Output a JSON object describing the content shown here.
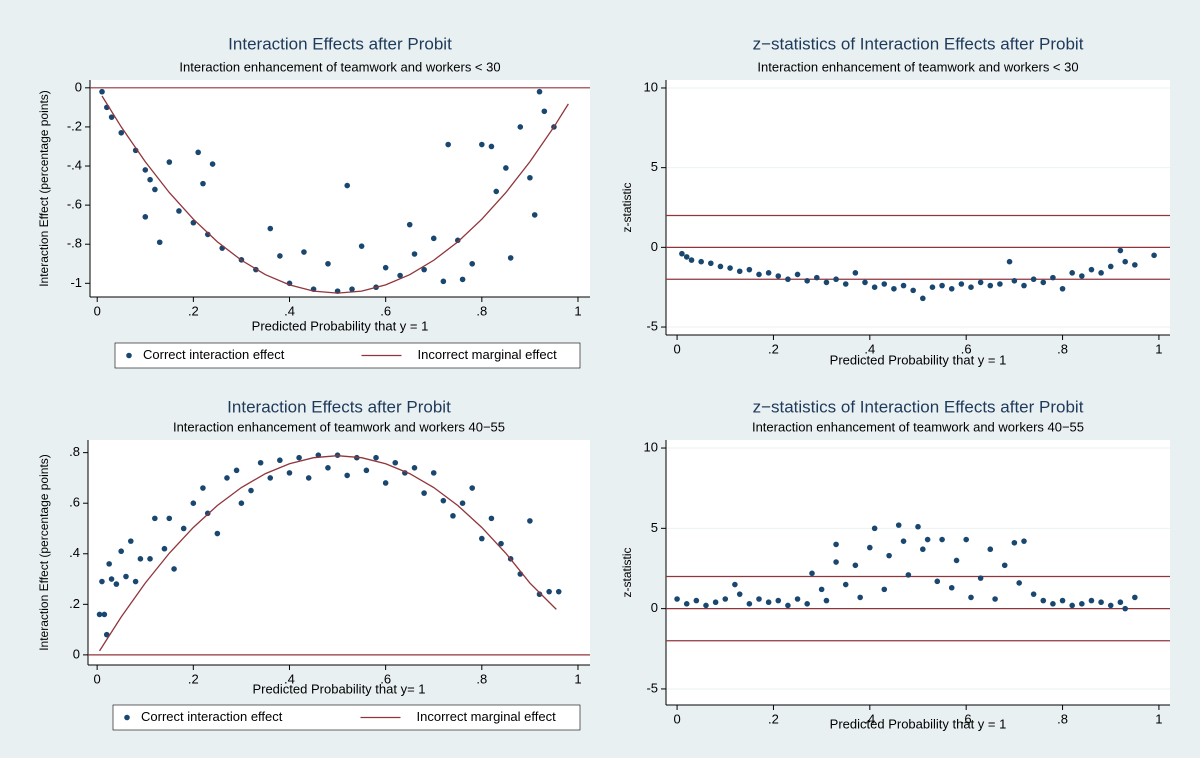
{
  "chart_data": [
    {
      "type": "scatter",
      "title": "Interaction Effects after Probit",
      "subtitle": "Interaction enhancement of teamwork and workers < 30",
      "xlabel": "Predicted Probability that y = 1",
      "ylabel": "Interaction Effect (percentage points)",
      "xlim": [
        -0.015,
        1.025
      ],
      "ylim": [
        -1.07,
        0.04
      ],
      "xticks": [
        0,
        {
          "value": 0.2,
          "label": ".2"
        },
        {
          "value": 0.4,
          "label": ".4"
        },
        {
          "value": 0.6,
          "label": ".6"
        },
        {
          "value": 0.8,
          "label": ".8"
        },
        1
      ],
      "yticks": [
        0,
        {
          "value": -0.2,
          "label": "-.2"
        },
        {
          "value": -0.4,
          "label": "-.4"
        },
        {
          "value": -0.6,
          "label": "-.6"
        },
        {
          "value": -0.8,
          "label": "-.8"
        },
        -1
      ],
      "grid": false,
      "legend": "bottom",
      "hlines": [
        0
      ],
      "hline_color": "#90353b",
      "series": [
        {
          "name": "Correct interaction effect",
          "kind": "points",
          "color": "#1a476f",
          "x": [
            0.01,
            0.02,
            0.03,
            0.05,
            0.08,
            0.1,
            0.11,
            0.12,
            0.1,
            0.13,
            0.15,
            0.17,
            0.2,
            0.21,
            0.22,
            0.24,
            0.23,
            0.26,
            0.3,
            0.33,
            0.36,
            0.38,
            0.4,
            0.43,
            0.45,
            0.48,
            0.5,
            0.52,
            0.53,
            0.55,
            0.58,
            0.6,
            0.63,
            0.65,
            0.66,
            0.68,
            0.7,
            0.72,
            0.73,
            0.75,
            0.76,
            0.78,
            0.8,
            0.82,
            0.83,
            0.85,
            0.86,
            0.88,
            0.9,
            0.92,
            0.93,
            0.95,
            0.91
          ],
          "values": [
            -0.02,
            -0.1,
            -0.15,
            -0.23,
            -0.32,
            -0.42,
            -0.47,
            -0.52,
            -0.66,
            -0.79,
            -0.38,
            -0.63,
            -0.69,
            -0.33,
            -0.49,
            -0.39,
            -0.75,
            -0.82,
            -0.88,
            -0.93,
            -0.72,
            -0.86,
            -1.0,
            -0.84,
            -1.03,
            -0.9,
            -1.04,
            -0.5,
            -1.03,
            -0.81,
            -1.02,
            -0.92,
            -0.96,
            -0.7,
            -0.85,
            -0.93,
            -0.77,
            -0.99,
            -0.29,
            -0.78,
            -0.98,
            -0.9,
            -0.29,
            -0.3,
            -0.53,
            -0.41,
            -0.87,
            -0.2,
            -0.46,
            -0.02,
            -0.12,
            -0.2,
            -0.65
          ]
        },
        {
          "name": "Incorrect marginal effect",
          "kind": "line",
          "color": "#90353b",
          "x": [
            0.01,
            0.05,
            0.1,
            0.15,
            0.2,
            0.25,
            0.3,
            0.35,
            0.4,
            0.45,
            0.5,
            0.55,
            0.6,
            0.65,
            0.7,
            0.75,
            0.8,
            0.85,
            0.9,
            0.95,
            0.98
          ],
          "values": [
            -0.042,
            -0.2,
            -0.378,
            -0.536,
            -0.672,
            -0.788,
            -0.882,
            -0.956,
            -1.008,
            -1.04,
            -1.05,
            -1.04,
            -1.008,
            -0.956,
            -0.882,
            -0.788,
            -0.672,
            -0.536,
            -0.378,
            -0.2,
            -0.082
          ]
        }
      ]
    },
    {
      "type": "scatter",
      "title": "z−statistics of Interaction Effects after Probit",
      "subtitle": "Interaction enhancement of teamwork and workers < 30",
      "xlabel": "Predicted Probability that y = 1",
      "ylabel": "z-statistic",
      "xlim": [
        -0.023,
        1.023
      ],
      "ylim": [
        -5.5,
        10.5
      ],
      "xticks": [
        0,
        {
          "value": 0.2,
          "label": ".2"
        },
        {
          "value": 0.4,
          "label": ".4"
        },
        {
          "value": 0.6,
          "label": ".6"
        },
        {
          "value": 0.8,
          "label": ".8"
        },
        1
      ],
      "yticks": [
        -5,
        0,
        5,
        10
      ],
      "grid": true,
      "hlines": [
        2,
        0,
        -2
      ],
      "hline_color": "#90353b",
      "series": [
        {
          "kind": "points",
          "color": "#1a476f",
          "x": [
            0.01,
            0.02,
            0.03,
            0.05,
            0.07,
            0.09,
            0.11,
            0.13,
            0.15,
            0.17,
            0.19,
            0.21,
            0.23,
            0.25,
            0.27,
            0.29,
            0.31,
            0.33,
            0.35,
            0.37,
            0.39,
            0.41,
            0.43,
            0.45,
            0.47,
            0.49,
            0.51,
            0.53,
            0.55,
            0.57,
            0.59,
            0.61,
            0.63,
            0.65,
            0.67,
            0.69,
            0.7,
            0.72,
            0.74,
            0.76,
            0.78,
            0.8,
            0.82,
            0.84,
            0.86,
            0.88,
            0.9,
            0.92,
            0.93,
            0.95,
            0.99
          ],
          "values": [
            -0.4,
            -0.6,
            -0.8,
            -0.9,
            -1.0,
            -1.2,
            -1.3,
            -1.5,
            -1.4,
            -1.7,
            -1.6,
            -1.8,
            -2.0,
            -1.7,
            -2.1,
            -1.9,
            -2.2,
            -2.0,
            -2.3,
            -1.6,
            -2.2,
            -2.5,
            -2.3,
            -2.6,
            -2.4,
            -2.7,
            -3.2,
            -2.5,
            -2.4,
            -2.6,
            -2.3,
            -2.5,
            -2.2,
            -2.4,
            -2.3,
            -0.9,
            -2.1,
            -2.4,
            -2.0,
            -2.2,
            -1.9,
            -2.6,
            -1.6,
            -1.8,
            -1.4,
            -1.6,
            -1.2,
            -0.2,
            -0.9,
            -1.1,
            -0.5
          ]
        }
      ]
    },
    {
      "type": "scatter",
      "title": "Interaction Effects after Probit",
      "subtitle": "Interaction enhancement of teamwork and workers 40−55",
      "xlabel": "Predicted Probability that y= 1",
      "ylabel": "Interaction Effect (percentage points)",
      "xlim": [
        -0.019,
        1.025
      ],
      "ylim": [
        -0.04,
        0.85
      ],
      "xticks": [
        0,
        {
          "value": 0.2,
          "label": ".2"
        },
        {
          "value": 0.4,
          "label": ".4"
        },
        {
          "value": 0.6,
          "label": ".6"
        },
        {
          "value": 0.8,
          "label": ".8"
        },
        1
      ],
      "yticks": [
        0,
        {
          "value": 0.2,
          "label": ".2"
        },
        {
          "value": 0.4,
          "label": ".4"
        },
        {
          "value": 0.6,
          "label": ".6"
        },
        {
          "value": 0.8,
          "label": ".8"
        }
      ],
      "grid": false,
      "legend": "bottom",
      "hlines": [
        0
      ],
      "hline_color": "#90353b",
      "series": [
        {
          "name": "Correct interaction effect",
          "kind": "points",
          "color": "#1a476f",
          "x": [
            0.005,
            0.015,
            0.01,
            0.02,
            0.025,
            0.03,
            0.04,
            0.05,
            0.06,
            0.07,
            0.08,
            0.09,
            0.11,
            0.12,
            0.14,
            0.15,
            0.16,
            0.18,
            0.2,
            0.22,
            0.23,
            0.25,
            0.27,
            0.29,
            0.3,
            0.32,
            0.34,
            0.36,
            0.38,
            0.4,
            0.42,
            0.44,
            0.46,
            0.48,
            0.5,
            0.52,
            0.54,
            0.56,
            0.58,
            0.6,
            0.62,
            0.64,
            0.66,
            0.68,
            0.7,
            0.72,
            0.74,
            0.76,
            0.78,
            0.8,
            0.82,
            0.84,
            0.86,
            0.88,
            0.9,
            0.92,
            0.94,
            0.96
          ],
          "values": [
            0.16,
            0.16,
            0.29,
            0.08,
            0.36,
            0.3,
            0.28,
            0.41,
            0.31,
            0.45,
            0.29,
            0.38,
            0.38,
            0.54,
            0.42,
            0.54,
            0.34,
            0.5,
            0.6,
            0.66,
            0.56,
            0.48,
            0.7,
            0.73,
            0.6,
            0.65,
            0.76,
            0.7,
            0.77,
            0.72,
            0.78,
            0.7,
            0.79,
            0.74,
            0.79,
            0.71,
            0.78,
            0.73,
            0.78,
            0.68,
            0.76,
            0.72,
            0.74,
            0.64,
            0.72,
            0.61,
            0.55,
            0.6,
            0.66,
            0.46,
            0.54,
            0.44,
            0.38,
            0.32,
            0.53,
            0.24,
            0.25,
            0.25
          ]
        },
        {
          "name": "Incorrect marginal effect",
          "kind": "line",
          "color": "#90353b",
          "x": [
            0.005,
            0.05,
            0.1,
            0.15,
            0.2,
            0.25,
            0.3,
            0.35,
            0.4,
            0.45,
            0.5,
            0.55,
            0.6,
            0.65,
            0.7,
            0.75,
            0.8,
            0.85,
            0.9,
            0.955
          ],
          "values": [
            0.016,
            0.15,
            0.284,
            0.402,
            0.504,
            0.591,
            0.662,
            0.717,
            0.756,
            0.78,
            0.788,
            0.78,
            0.756,
            0.717,
            0.662,
            0.591,
            0.504,
            0.402,
            0.284,
            0.18
          ]
        }
      ]
    },
    {
      "type": "scatter",
      "title": "z−statistics of Interaction Effects after Probit",
      "subtitle": "Interaction enhancement of teamwork and workers 40−55",
      "xlabel": "Predicted Probability that y = 1",
      "ylabel": "z-statistic",
      "xlim": [
        -0.023,
        1.023
      ],
      "ylim": [
        -6,
        10.5
      ],
      "xticks": [
        0,
        {
          "value": 0.2,
          "label": ".2"
        },
        {
          "value": 0.4,
          "label": ".4"
        },
        {
          "value": 0.6,
          "label": ".6"
        },
        {
          "value": 0.8,
          "label": ".8"
        },
        1
      ],
      "yticks": [
        -5,
        0,
        5,
        10
      ],
      "grid": true,
      "hlines": [
        2,
        0,
        -2
      ],
      "hline_color": "#90353b",
      "series": [
        {
          "kind": "points",
          "color": "#1a476f",
          "x": [
            0.0,
            0.02,
            0.04,
            0.06,
            0.08,
            0.1,
            0.12,
            0.13,
            0.15,
            0.17,
            0.19,
            0.21,
            0.23,
            0.25,
            0.27,
            0.28,
            0.3,
            0.31,
            0.33,
            0.33,
            0.35,
            0.37,
            0.38,
            0.4,
            0.41,
            0.43,
            0.44,
            0.46,
            0.47,
            0.48,
            0.5,
            0.51,
            0.52,
            0.54,
            0.55,
            0.57,
            0.58,
            0.6,
            0.61,
            0.63,
            0.65,
            0.66,
            0.68,
            0.7,
            0.71,
            0.72,
            0.74,
            0.76,
            0.78,
            0.8,
            0.82,
            0.84,
            0.86,
            0.88,
            0.9,
            0.92,
            0.93,
            0.95
          ],
          "values": [
            0.6,
            0.3,
            0.5,
            0.2,
            0.4,
            0.6,
            1.5,
            0.9,
            0.3,
            0.6,
            0.4,
            0.5,
            0.2,
            0.6,
            0.3,
            2.2,
            1.2,
            0.5,
            2.9,
            4.0,
            1.5,
            2.7,
            0.7,
            3.8,
            5.0,
            1.2,
            3.3,
            5.2,
            4.2,
            2.1,
            5.1,
            3.7,
            4.3,
            1.7,
            4.3,
            1.3,
            3.0,
            4.3,
            0.7,
            1.9,
            3.7,
            0.6,
            2.7,
            4.1,
            1.6,
            4.2,
            0.9,
            0.5,
            0.3,
            0.5,
            0.2,
            0.3,
            0.5,
            0.4,
            0.2,
            0.4,
            0.0,
            0.7
          ]
        }
      ]
    }
  ]
}
